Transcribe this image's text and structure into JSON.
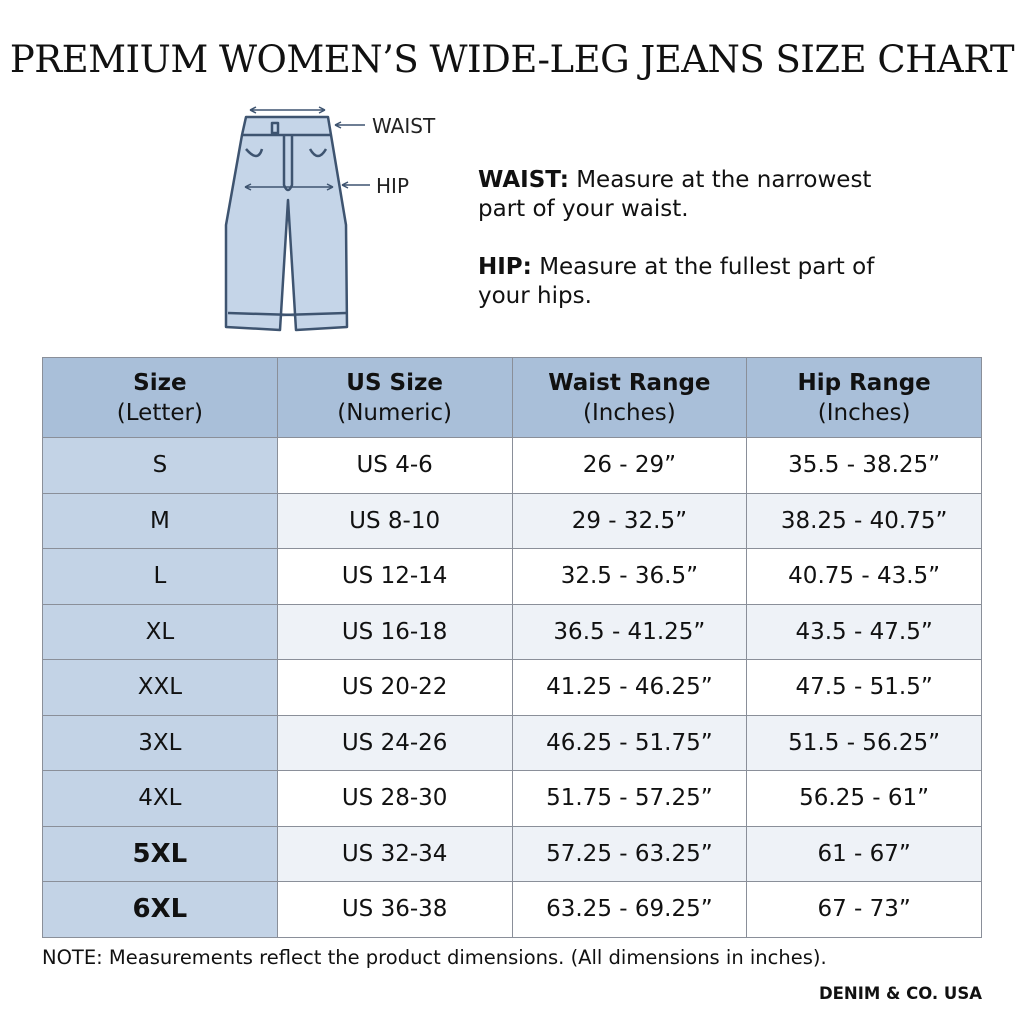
{
  "header": {
    "title": "PREMIUM WOMEN’S WIDE-LEG JEANS SIZE CHART"
  },
  "diagram": {
    "labels": [
      "WAIST",
      "HIP"
    ]
  },
  "instructions": [
    {
      "label": "WAIST:",
      "text": "Measure at the narrowest part of your waist."
    },
    {
      "label": "HIP:",
      "text": "Measure at the fullest part of your hips."
    }
  ],
  "table": {
    "columns": [
      {
        "name": "Size",
        "unit": "(Letter)"
      },
      {
        "name": "US Size",
        "unit": "(Numeric)"
      },
      {
        "name": "Waist Range",
        "unit": "(Inches)"
      },
      {
        "name": "Hip Range",
        "unit": "(Inches)"
      }
    ],
    "rows": [
      [
        "S",
        "US 4-6",
        "26 - 29”",
        "35.5 - 38.25”"
      ],
      [
        "M",
        "US 8-10",
        "29 - 32.5”",
        "38.25 - 40.75”"
      ],
      [
        "L",
        "US 12-14",
        "32.5 - 36.5”",
        "40.75 - 43.5”"
      ],
      [
        "XL",
        "US 16-18",
        "36.5 - 41.25”",
        "43.5 - 47.5”"
      ],
      [
        "XXL",
        "US 20-22",
        "41.25 - 46.25”",
        "47.5 - 51.5”"
      ],
      [
        "3XL",
        "US 24-26",
        "46.25 - 51.75”",
        "51.5 - 56.25”"
      ],
      [
        "4XL",
        "US 28-30",
        "51.75 - 57.25”",
        "56.25 - 61”"
      ],
      [
        "5XL",
        "US 32-34",
        "57.25 - 63.25”",
        "61 - 67”"
      ],
      [
        "6XL",
        "US 36-38",
        "63.25 - 69.25”",
        "67 - 73”"
      ]
    ]
  },
  "footer": {
    "note": "NOTE: Measurements reflect the product dimensions. (All dimensions in inches).",
    "brand": "DENIM & CO. USA"
  }
}
